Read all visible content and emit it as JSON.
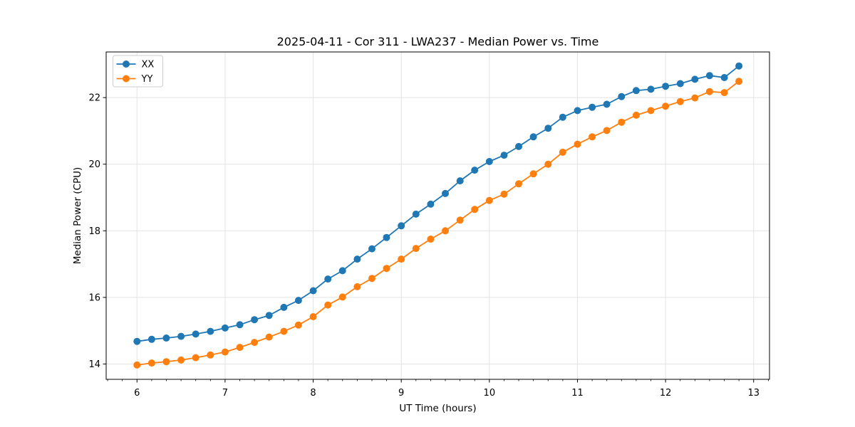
{
  "chart_data": {
    "type": "line",
    "title": "2025-04-11 - Cor 311 - LWA237 - Median Power vs. Time",
    "xlabel": "UT Time (hours)",
    "ylabel": "Median Power (CPU)",
    "xlim": [
      5.65,
      13.18
    ],
    "ylim": [
      13.54,
      23.37
    ],
    "xticks": [
      6,
      7,
      8,
      9,
      10,
      11,
      12,
      13
    ],
    "yticks": [
      14,
      16,
      18,
      20,
      22
    ],
    "x_minor_tick_step": 0.1667,
    "grid": true,
    "grid_color": "#e3e3e3",
    "legend_position": "upper left",
    "x": [
      6.0,
      6.167,
      6.333,
      6.5,
      6.667,
      6.833,
      7.0,
      7.167,
      7.333,
      7.5,
      7.667,
      7.833,
      8.0,
      8.167,
      8.333,
      8.5,
      8.667,
      8.833,
      9.0,
      9.167,
      9.333,
      9.5,
      9.667,
      9.833,
      10.0,
      10.167,
      10.333,
      10.5,
      10.667,
      10.833,
      11.0,
      11.167,
      11.333,
      11.5,
      11.667,
      11.833,
      12.0,
      12.167,
      12.333,
      12.5,
      12.667,
      12.833
    ],
    "series": [
      {
        "name": "XX",
        "color": "#1f77b4",
        "marker": "circle",
        "values": [
          14.68,
          14.74,
          14.78,
          14.83,
          14.9,
          14.98,
          15.08,
          15.18,
          15.33,
          15.46,
          15.7,
          15.91,
          16.2,
          16.55,
          16.8,
          17.15,
          17.46,
          17.8,
          18.15,
          18.5,
          18.8,
          19.12,
          19.5,
          19.82,
          20.08,
          20.27,
          20.53,
          20.82,
          21.08,
          21.41,
          21.61,
          21.71,
          21.8,
          22.03,
          22.21,
          22.25,
          22.34,
          22.42,
          22.55,
          22.66,
          22.6,
          22.95
        ]
      },
      {
        "name": "YY",
        "color": "#ff7f0e",
        "marker": "circle",
        "values": [
          13.97,
          14.03,
          14.07,
          14.12,
          14.19,
          14.27,
          14.36,
          14.5,
          14.65,
          14.81,
          14.98,
          15.17,
          15.42,
          15.77,
          16.01,
          16.32,
          16.57,
          16.87,
          17.15,
          17.47,
          17.75,
          18.0,
          18.32,
          18.64,
          18.91,
          19.1,
          19.41,
          19.71,
          20.0,
          20.36,
          20.6,
          20.82,
          21.01,
          21.26,
          21.47,
          21.61,
          21.74,
          21.88,
          21.99,
          22.18,
          22.15,
          22.49
        ]
      }
    ]
  }
}
